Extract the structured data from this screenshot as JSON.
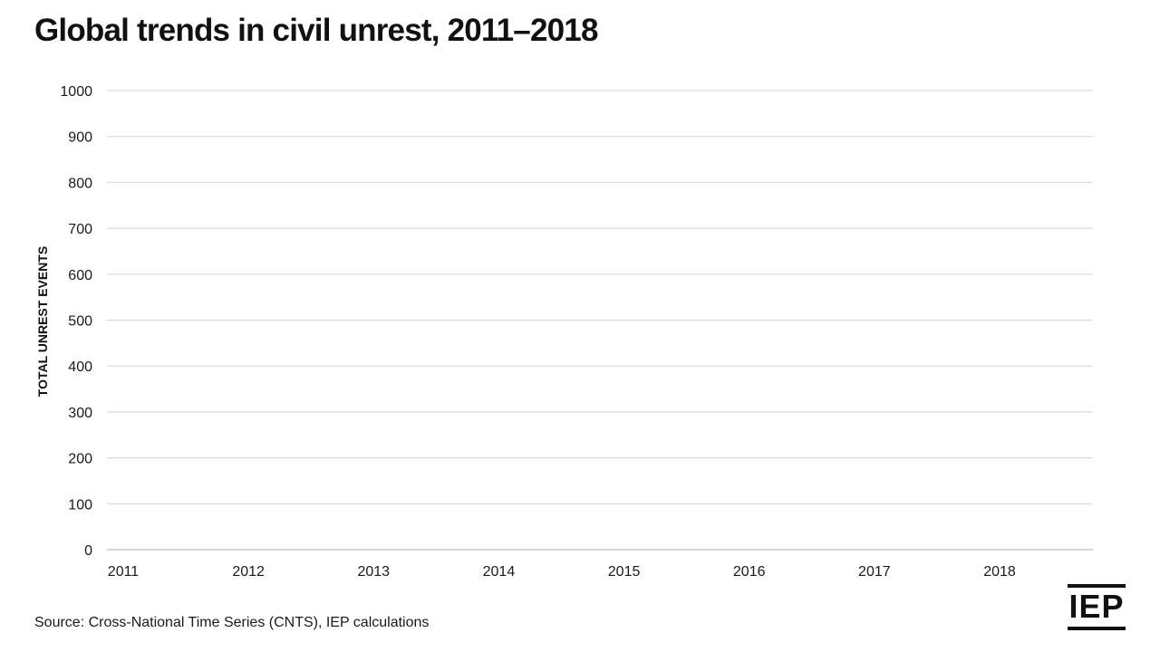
{
  "title": "Global trends in civil unrest, 2011–2018",
  "source": "Source: Cross-National Time Series (CNTS), IEP calculations",
  "logo": "IEP",
  "chart_data": {
    "type": "line",
    "title": "Global trends in civil unrest, 2011–2018",
    "xlabel": "",
    "ylabel": "TOTAL UNREST EVENTS",
    "categories": [
      "2011",
      "2012",
      "2013",
      "2014",
      "2015",
      "2016",
      "2017",
      "2018"
    ],
    "yticks": [
      0,
      100,
      200,
      300,
      400,
      500,
      600,
      700,
      800,
      900,
      1000
    ],
    "ylim": [
      0,
      1000
    ],
    "grid": true,
    "series": []
  },
  "colors": {
    "grid": "#d9d9d9",
    "axis": "#bdbdbd",
    "text": "#1a1a1a"
  }
}
